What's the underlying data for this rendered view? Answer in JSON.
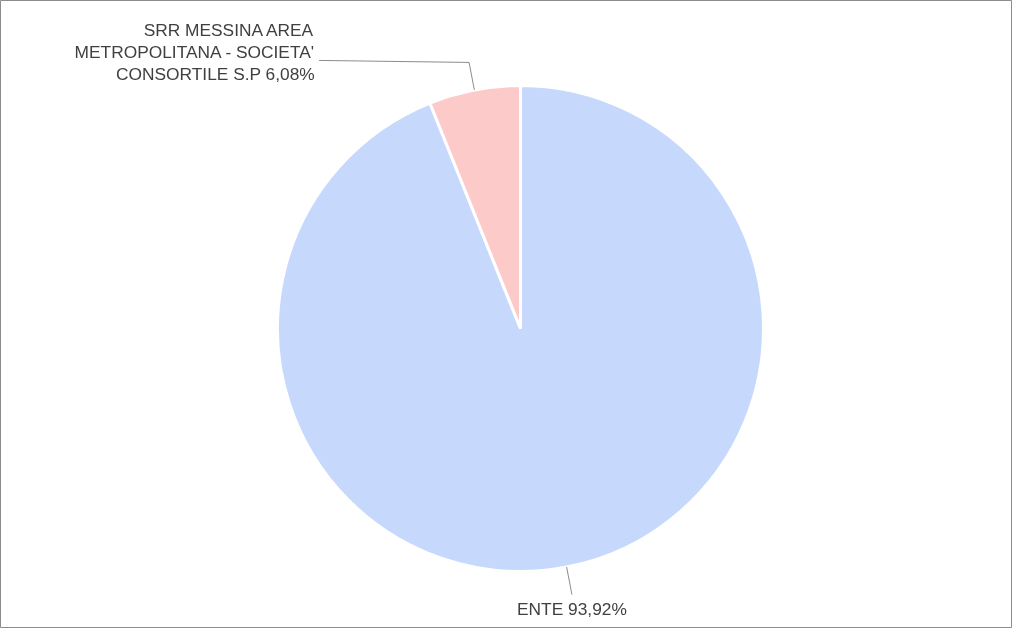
{
  "chart_data": {
    "type": "pie",
    "categories": [
      "ENTE",
      "SRR MESSINA AREA METROPOLITANA - SOCIETA' CONSORTILE S.P"
    ],
    "values": [
      93.92,
      6.08
    ],
    "colors": [
      "#c6d9fd",
      "#fdcaca"
    ],
    "value_labels": [
      "93,92%",
      "6,08%"
    ]
  }
}
